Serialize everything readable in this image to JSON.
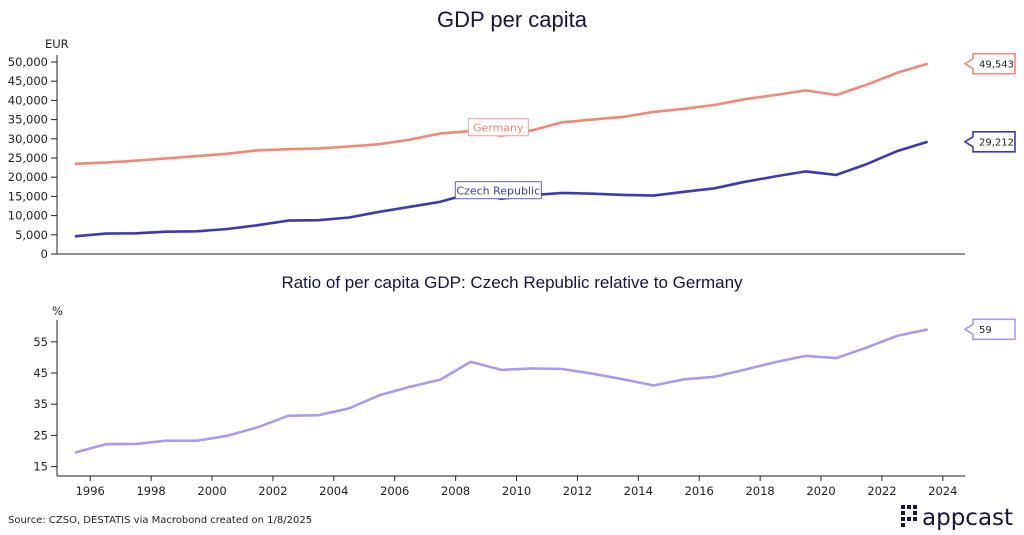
{
  "chart_data": [
    {
      "type": "line",
      "title": "GDP per capita",
      "ylabel": "EUR",
      "ylim": [
        0,
        50000
      ],
      "yticks": [
        0,
        5000,
        10000,
        15000,
        20000,
        25000,
        30000,
        35000,
        40000,
        45000,
        50000
      ],
      "ytick_labels": [
        "0",
        "5,000",
        "10,000",
        "15,000",
        "20,000",
        "25,000",
        "30,000",
        "35,000",
        "40,000",
        "45,000",
        "50,000"
      ],
      "x": [
        1995,
        1996,
        1997,
        1998,
        1999,
        2000,
        2001,
        2002,
        2003,
        2004,
        2005,
        2006,
        2007,
        2008,
        2009,
        2010,
        2011,
        2012,
        2013,
        2014,
        2015,
        2016,
        2017,
        2018,
        2019,
        2020,
        2021,
        2022,
        2023
      ],
      "grid": false,
      "series": [
        {
          "name": "Germany",
          "color": "#f4877a",
          "values": [
            23500,
            23800,
            24300,
            24900,
            25500,
            26100,
            27000,
            27300,
            27500,
            28000,
            28600,
            29800,
            31400,
            32000,
            30800,
            32200,
            34300,
            35000,
            35700,
            37000,
            37800,
            38800,
            40300,
            41400,
            42600,
            41400,
            44100,
            47200,
            49543
          ],
          "end_label": "49,543"
        },
        {
          "name": "Czech Republic",
          "color": "#3a3ab8",
          "values": [
            4600,
            5300,
            5400,
            5800,
            5900,
            6500,
            7500,
            8700,
            8800,
            9500,
            11000,
            12300,
            13600,
            15800,
            14400,
            15300,
            15900,
            15700,
            15400,
            15200,
            16200,
            17100,
            18800,
            20200,
            21500,
            20600,
            23400,
            26800,
            29212
          ],
          "end_label": "29,212"
        }
      ]
    },
    {
      "type": "line",
      "title": "Ratio of per capita GDP: Czech Republic relative to Germany",
      "ylabel": "%",
      "ylim": [
        12,
        62
      ],
      "yticks": [
        15,
        25,
        35,
        45,
        55
      ],
      "ytick_labels": [
        "15",
        "25",
        "35",
        "45",
        "55"
      ],
      "x": [
        1995,
        1996,
        1997,
        1998,
        1999,
        2000,
        2001,
        2002,
        2003,
        2004,
        2005,
        2006,
        2007,
        2008,
        2009,
        2010,
        2011,
        2012,
        2013,
        2014,
        2015,
        2016,
        2017,
        2018,
        2019,
        2020,
        2021,
        2022,
        2023
      ],
      "xticks": [
        1996,
        1998,
        2000,
        2002,
        2004,
        2006,
        2008,
        2010,
        2012,
        2014,
        2016,
        2018,
        2020,
        2022,
        2024
      ],
      "xtick_labels": [
        "1996",
        "1998",
        "2000",
        "2002",
        "2004",
        "2006",
        "2008",
        "2010",
        "2012",
        "2014",
        "2016",
        "2018",
        "2020",
        "2022",
        "2024"
      ],
      "grid": false,
      "series": [
        {
          "name": "",
          "color": "#a99cf0",
          "values": [
            19.5,
            22.2,
            22.3,
            23.3,
            23.3,
            24.9,
            27.6,
            31.3,
            31.5,
            33.7,
            37.9,
            40.6,
            42.9,
            48.6,
            46.0,
            46.5,
            46.3,
            44.8,
            43.0,
            41.0,
            43.0,
            43.8,
            46.1,
            48.5,
            50.5,
            49.8,
            53.2,
            56.9,
            59.0
          ],
          "end_label": "59"
        }
      ]
    }
  ],
  "footer": {
    "source": "Source: CZSO, DESTATIS via Macrobond created on 1/8/2025",
    "logo_text": "appcast"
  }
}
